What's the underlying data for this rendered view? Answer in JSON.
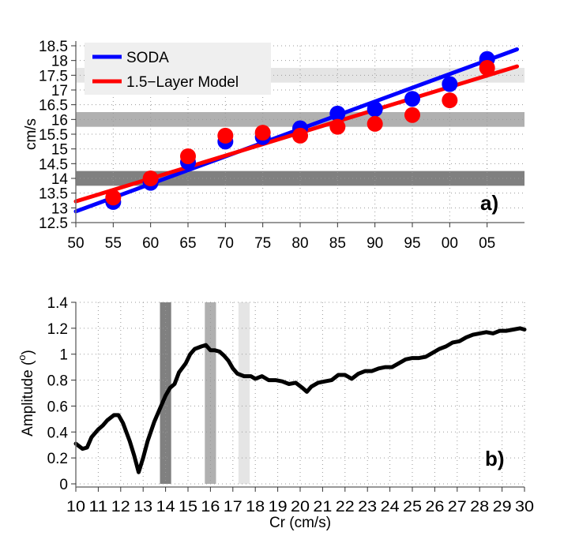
{
  "chart_data": [
    {
      "panel": "a)",
      "type": "scatter",
      "title": "",
      "xlabel": "",
      "ylabel": "cm/s",
      "xlim": [
        1950,
        2010
      ],
      "ylim": [
        12.5,
        18.5
      ],
      "grid": true,
      "x_ticks": [
        1950,
        1955,
        1960,
        1965,
        1970,
        1975,
        1980,
        1985,
        1990,
        1995,
        2000,
        2005
      ],
      "x_tick_labels": [
        "50",
        "55",
        "60",
        "65",
        "70",
        "75",
        "80",
        "85",
        "90",
        "95",
        "00",
        "05"
      ],
      "y_ticks": [
        12.5,
        13,
        13.5,
        14,
        14.5,
        15,
        15.5,
        16,
        16.5,
        17,
        17.5,
        18,
        18.5
      ],
      "y_tick_labels": [
        "12.5",
        "13",
        "13.5",
        "14",
        "14.5",
        "15",
        "15.5",
        "16",
        "16.5",
        "17",
        "17.5",
        "18",
        "18.5"
      ],
      "legend": {
        "placement": "top-left",
        "background": "#efefef",
        "entries": [
          "SODA",
          "1.5−Layer Model"
        ]
      },
      "bands": [
        {
          "name": "dark-band",
          "range": [
            13.75,
            14.25
          ],
          "color": "#808080"
        },
        {
          "name": "mid-band",
          "range": [
            15.75,
            16.25
          ],
          "color": "#b0b0b0"
        },
        {
          "name": "light-band",
          "range": [
            17.25,
            17.75
          ],
          "color": "#e5e5e5"
        }
      ],
      "series": [
        {
          "name": "SODA",
          "color": "#0000ff",
          "x": [
            1955,
            1960,
            1965,
            1970,
            1975,
            1980,
            1985,
            1990,
            1995,
            2000,
            2005
          ],
          "values": [
            13.2,
            13.85,
            14.55,
            15.25,
            15.4,
            15.7,
            16.2,
            16.35,
            16.7,
            17.2,
            18.05
          ],
          "trend": {
            "x": [
              1950,
              2009
            ],
            "y": [
              12.88,
              18.38
            ]
          }
        },
        {
          "name": "1.5−Layer Model",
          "color": "#ff0000",
          "x": [
            1955,
            1960,
            1965,
            1970,
            1975,
            1980,
            1985,
            1990,
            1995,
            2000,
            2005
          ],
          "values": [
            13.35,
            14.0,
            14.75,
            15.45,
            15.55,
            15.45,
            15.75,
            15.85,
            16.15,
            16.65,
            17.75
          ],
          "trend": {
            "x": [
              1950,
              2009
            ],
            "y": [
              13.22,
              17.8
            ]
          }
        }
      ]
    },
    {
      "panel": "b)",
      "type": "line",
      "title": "",
      "xlabel": "Cr (cm/s)",
      "ylabel": "Amplitude (",
      "ylabel_superscript": "o",
      "ylabel_suffix": ")",
      "xlim": [
        10,
        30
      ],
      "ylim": [
        0,
        1.4
      ],
      "grid": true,
      "x_ticks": [
        10,
        11,
        12,
        13,
        14,
        15,
        16,
        17,
        18,
        19,
        20,
        21,
        22,
        23,
        24,
        25,
        26,
        27,
        28,
        29,
        30
      ],
      "x_tick_labels": [
        "10",
        "11",
        "12",
        "13",
        "14",
        "15",
        "16",
        "17",
        "18",
        "19",
        "20",
        "21",
        "22",
        "23",
        "24",
        "25",
        "26",
        "27",
        "28",
        "29",
        "30"
      ],
      "y_ticks": [
        0,
        0.2,
        0.4,
        0.6,
        0.8,
        1,
        1.2,
        1.4
      ],
      "y_tick_labels": [
        "0",
        "0.2",
        "0.4",
        "0.6",
        "0.8",
        "1",
        "1.2",
        "1.4"
      ],
      "bands": [
        {
          "name": "dark-band",
          "range": [
            13.75,
            14.25
          ],
          "color": "#808080"
        },
        {
          "name": "mid-band",
          "range": [
            15.75,
            16.25
          ],
          "color": "#b0b0b0"
        },
        {
          "name": "light-band",
          "range": [
            17.25,
            17.75
          ],
          "color": "#e5e5e5"
        }
      ],
      "series": [
        {
          "name": "amplitude",
          "color": "#000000",
          "x": [
            10,
            10.3,
            10.5,
            10.7,
            11.0,
            11.2,
            11.4,
            11.7,
            11.9,
            12.1,
            12.4,
            12.6,
            12.8,
            13.0,
            13.2,
            13.5,
            13.8,
            14.0,
            14.2,
            14.4,
            14.6,
            14.9,
            15.1,
            15.3,
            15.6,
            15.8,
            16.0,
            16.2,
            16.4,
            16.6,
            16.8,
            17.0,
            17.2,
            17.5,
            17.8,
            18.0,
            18.3,
            18.6,
            18.9,
            19.2,
            19.5,
            19.8,
            20.1,
            20.3,
            20.5,
            20.8,
            21.1,
            21.4,
            21.7,
            22.0,
            22.3,
            22.6,
            22.9,
            23.2,
            23.5,
            23.8,
            24.1,
            24.4,
            24.7,
            25.0,
            25.3,
            25.6,
            25.9,
            26.2,
            26.5,
            26.8,
            27.1,
            27.4,
            27.7,
            28.0,
            28.3,
            28.6,
            28.9,
            29.2,
            29.5,
            29.8,
            30.0
          ],
          "values": [
            0.31,
            0.27,
            0.28,
            0.36,
            0.42,
            0.45,
            0.49,
            0.53,
            0.53,
            0.47,
            0.33,
            0.22,
            0.09,
            0.2,
            0.33,
            0.48,
            0.6,
            0.68,
            0.74,
            0.77,
            0.86,
            0.93,
            1.0,
            1.04,
            1.06,
            1.07,
            1.03,
            1.03,
            1.02,
            0.99,
            0.95,
            0.89,
            0.85,
            0.83,
            0.83,
            0.81,
            0.83,
            0.8,
            0.8,
            0.79,
            0.77,
            0.78,
            0.74,
            0.71,
            0.75,
            0.78,
            0.79,
            0.8,
            0.84,
            0.84,
            0.81,
            0.85,
            0.87,
            0.87,
            0.89,
            0.9,
            0.9,
            0.93,
            0.96,
            0.97,
            0.97,
            0.98,
            1.01,
            1.04,
            1.06,
            1.09,
            1.1,
            1.13,
            1.15,
            1.16,
            1.17,
            1.16,
            1.18,
            1.18,
            1.19,
            1.2,
            1.19
          ]
        }
      ]
    }
  ]
}
